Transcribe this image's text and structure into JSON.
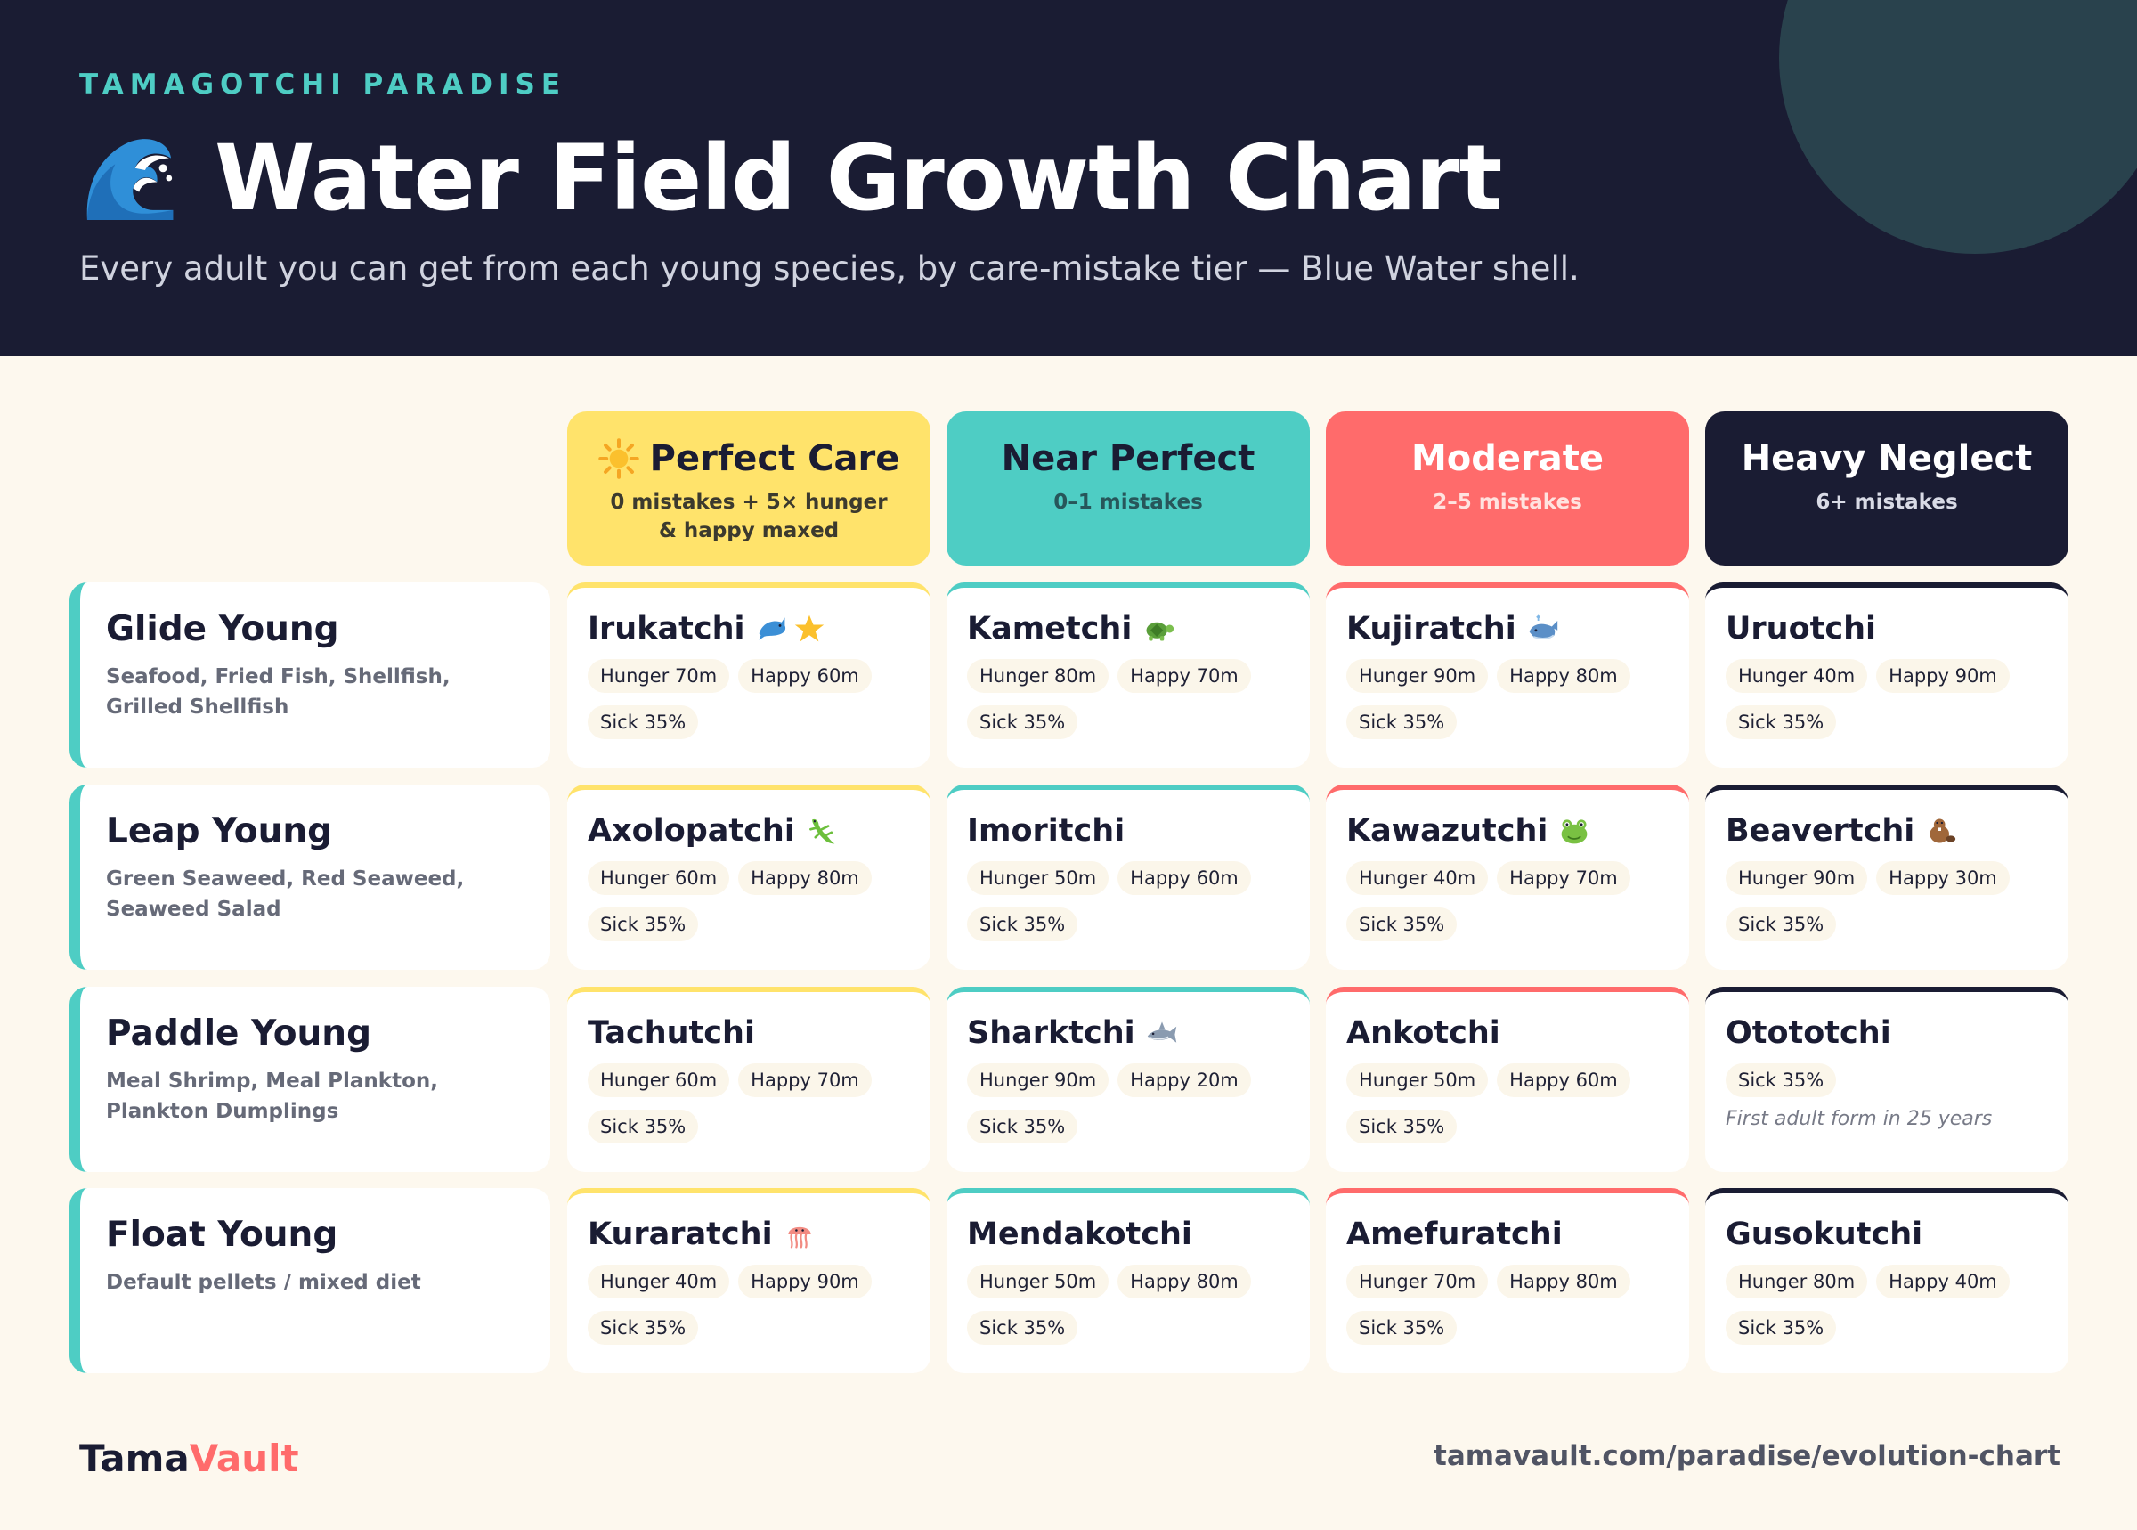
{
  "header": {
    "eyebrow": "TAMAGOTCHI PARADISE",
    "title": "Water Field Growth Chart",
    "title_icon": "water-wave-icon",
    "subtitle": "Every adult you can get from each young species, by care-mistake tier — Blue Water shell."
  },
  "tiers": [
    {
      "name": "Perfect Care",
      "sub": "0 mistakes + 5× hunger & happy maxed",
      "icon": "sun-icon",
      "color": "#ffe36b"
    },
    {
      "name": "Near Perfect",
      "sub": "0–1 mistakes",
      "color": "#4ecdc4"
    },
    {
      "name": "Moderate",
      "sub": "2–5 mistakes",
      "color": "#ff6b6b"
    },
    {
      "name": "Heavy Neglect",
      "sub": "6+ mistakes",
      "color": "#1a1c33"
    }
  ],
  "rows": [
    {
      "young": "Glide Young",
      "diet": "Seafood, Fried Fish, Shellfish, Grilled Shellfish",
      "adults": [
        {
          "name": "Irukatchi",
          "hunger": "Hunger 70m",
          "happy": "Happy 60m",
          "sick": "Sick 35%",
          "icons": [
            "dolphin-icon",
            "star-icon"
          ]
        },
        {
          "name": "Kametchi",
          "hunger": "Hunger 80m",
          "happy": "Happy 70m",
          "sick": "Sick 35%",
          "icons": [
            "turtle-icon"
          ]
        },
        {
          "name": "Kujiratchi",
          "hunger": "Hunger 90m",
          "happy": "Happy 80m",
          "sick": "Sick 35%",
          "icons": [
            "whale-icon"
          ]
        },
        {
          "name": "Uruotchi",
          "hunger": "Hunger 40m",
          "happy": "Happy 90m",
          "sick": "Sick 35%",
          "icons": []
        }
      ]
    },
    {
      "young": "Leap Young",
      "diet": "Green Seaweed, Red Seaweed, Seaweed Salad",
      "adults": [
        {
          "name": "Axolopatchi",
          "hunger": "Hunger 60m",
          "happy": "Happy 80m",
          "sick": "Sick 35%",
          "icons": [
            "lizard-icon"
          ]
        },
        {
          "name": "Imoritchi",
          "hunger": "Hunger 50m",
          "happy": "Happy 60m",
          "sick": "Sick 35%",
          "icons": []
        },
        {
          "name": "Kawazutchi",
          "hunger": "Hunger 40m",
          "happy": "Happy 70m",
          "sick": "Sick 35%",
          "icons": [
            "frog-icon"
          ]
        },
        {
          "name": "Beavertchi",
          "hunger": "Hunger 90m",
          "happy": "Happy 30m",
          "sick": "Sick 35%",
          "icons": [
            "beaver-icon"
          ]
        }
      ]
    },
    {
      "young": "Paddle Young",
      "diet": "Meal Shrimp, Meal Plankton, Plankton Dumplings",
      "adults": [
        {
          "name": "Tachutchi",
          "hunger": "Hunger 60m",
          "happy": "Happy 70m",
          "sick": "Sick 35%",
          "icons": []
        },
        {
          "name": "Sharktchi",
          "hunger": "Hunger 90m",
          "happy": "Happy 20m",
          "sick": "Sick 35%",
          "icons": [
            "shark-icon"
          ]
        },
        {
          "name": "Ankotchi",
          "hunger": "Hunger 50m",
          "happy": "Happy 60m",
          "sick": "Sick 35%",
          "icons": []
        },
        {
          "name": "Otototchi",
          "sick": "Sick 35%",
          "note": "First adult form in 25 years",
          "icons": []
        }
      ]
    },
    {
      "young": "Float Young",
      "diet": "Default pellets / mixed diet",
      "adults": [
        {
          "name": "Kuraratchi",
          "hunger": "Hunger 40m",
          "happy": "Happy 90m",
          "sick": "Sick 35%",
          "icons": [
            "jellyfish-icon"
          ]
        },
        {
          "name": "Mendakotchi",
          "hunger": "Hunger 50m",
          "happy": "Happy 80m",
          "sick": "Sick 35%",
          "icons": []
        },
        {
          "name": "Amefuratchi",
          "hunger": "Hunger 70m",
          "happy": "Happy 80m",
          "sick": "Sick 35%",
          "icons": []
        },
        {
          "name": "Gusokutchi",
          "hunger": "Hunger 80m",
          "happy": "Happy 40m",
          "sick": "Sick 35%",
          "icons": []
        }
      ]
    }
  ],
  "footer": {
    "logo_part1": "Tama",
    "logo_part2": "Vault",
    "url": "tamavault.com/paradise/evolution-chart"
  }
}
